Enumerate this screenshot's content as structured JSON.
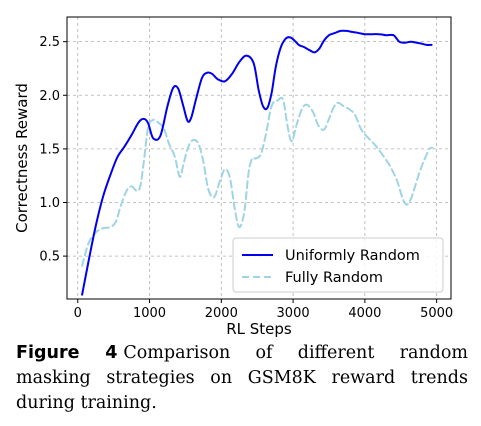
{
  "chart_data": {
    "type": "line",
    "xlabel": "RL Steps",
    "ylabel": "Correctness Reward",
    "xlim": [
      -150,
      5200
    ],
    "ylim": [
      0.1,
      2.73
    ],
    "xticks": [
      0,
      1000,
      2000,
      3000,
      4000,
      5000
    ],
    "xtick_labels": [
      "0",
      "1000",
      "2000",
      "3000",
      "4000",
      "5000"
    ],
    "yticks": [
      0.5,
      1.0,
      1.5,
      2.0,
      2.5
    ],
    "ytick_labels": [
      "0.5",
      "1.0",
      "1.5",
      "2.0",
      "2.5"
    ],
    "grid": true,
    "legend_position": "lower-right",
    "series": [
      {
        "name": "Uniformly Random",
        "color": "#0000ee",
        "style": "solid",
        "x": [
          60,
          150,
          250,
          350,
          450,
          550,
          650,
          750,
          850,
          920,
          980,
          1050,
          1150,
          1250,
          1330,
          1400,
          1470,
          1530,
          1580,
          1650,
          1730,
          1800,
          1870,
          1950,
          2050,
          2150,
          2250,
          2350,
          2450,
          2520,
          2580,
          2640,
          2700,
          2760,
          2830,
          2900,
          2960,
          3020,
          3080,
          3150,
          3230,
          3300,
          3370,
          3430,
          3500,
          3580,
          3660,
          3750,
          3830,
          3920,
          4000,
          4100,
          4200,
          4300,
          4400,
          4480,
          4560,
          4640,
          4720,
          4800,
          4860,
          4930
        ],
        "y": [
          0.14,
          0.45,
          0.78,
          1.05,
          1.25,
          1.42,
          1.52,
          1.63,
          1.75,
          1.78,
          1.74,
          1.6,
          1.62,
          1.9,
          2.07,
          2.06,
          1.9,
          1.76,
          1.79,
          1.97,
          2.16,
          2.21,
          2.2,
          2.15,
          2.13,
          2.2,
          2.31,
          2.37,
          2.3,
          2.05,
          1.9,
          1.88,
          2.02,
          2.27,
          2.45,
          2.53,
          2.54,
          2.51,
          2.47,
          2.45,
          2.42,
          2.4,
          2.44,
          2.51,
          2.56,
          2.58,
          2.6,
          2.6,
          2.59,
          2.58,
          2.57,
          2.57,
          2.57,
          2.56,
          2.56,
          2.5,
          2.49,
          2.5,
          2.49,
          2.48,
          2.47,
          2.47
        ]
      },
      {
        "name": "Fully Random",
        "color": "#9fd4e6",
        "style": "dashed",
        "x": [
          60,
          150,
          250,
          350,
          450,
          530,
          600,
          680,
          750,
          820,
          870,
          920,
          980,
          1050,
          1130,
          1200,
          1270,
          1350,
          1420,
          1470,
          1530,
          1600,
          1680,
          1750,
          1820,
          1900,
          1980,
          2050,
          2120,
          2190,
          2250,
          2320,
          2380,
          2430,
          2480,
          2550,
          2620,
          2700,
          2780,
          2860,
          2920,
          2980,
          3050,
          3130,
          3200,
          3280,
          3350,
          3430,
          3500,
          3560,
          3620,
          3700,
          3780,
          3860,
          3950,
          4050,
          4150,
          4250,
          4350,
          4450,
          4520,
          4580,
          4640,
          4700,
          4760,
          4830,
          4900,
          4940
        ],
        "y": [
          0.41,
          0.62,
          0.72,
          0.76,
          0.77,
          0.82,
          0.97,
          1.11,
          1.15,
          1.11,
          1.15,
          1.38,
          1.7,
          1.77,
          1.74,
          1.69,
          1.55,
          1.43,
          1.24,
          1.35,
          1.5,
          1.58,
          1.55,
          1.38,
          1.12,
          1.05,
          1.2,
          1.31,
          1.23,
          0.93,
          0.77,
          0.91,
          1.28,
          1.41,
          1.41,
          1.45,
          1.63,
          1.9,
          1.95,
          1.96,
          1.72,
          1.57,
          1.73,
          1.88,
          1.91,
          1.84,
          1.72,
          1.68,
          1.78,
          1.88,
          1.93,
          1.9,
          1.87,
          1.82,
          1.68,
          1.6,
          1.53,
          1.44,
          1.34,
          1.2,
          1.05,
          0.98,
          1.03,
          1.15,
          1.28,
          1.4,
          1.5,
          1.51
        ]
      }
    ]
  },
  "caption": {
    "label": "Figure 4",
    "text": "Comparison of different random masking strategies on GSM8K reward trends during training."
  }
}
